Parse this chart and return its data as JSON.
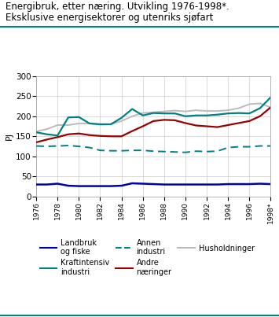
{
  "title_line1": "Energibruk, etter næring. Utvikling 1976-1998*.",
  "title_line2": "Eksklusive energisektorer og utenriks sjøfart",
  "ylabel": "PJ",
  "years": [
    1976,
    1977,
    1978,
    1979,
    1980,
    1981,
    1982,
    1983,
    1984,
    1985,
    1986,
    1987,
    1988,
    1989,
    1990,
    1991,
    1992,
    1993,
    1994,
    1995,
    1996,
    1997,
    1998
  ],
  "xtick_labels": [
    "1976",
    "1978",
    "1980",
    "1982",
    "1984",
    "1986",
    "1988",
    "1990",
    "1992",
    "1994",
    "1996",
    "1998*"
  ],
  "xtick_positions": [
    1976,
    1978,
    1980,
    1982,
    1984,
    1986,
    1988,
    1990,
    1992,
    1994,
    1996,
    1998
  ],
  "ylim": [
    0,
    300
  ],
  "yticks": [
    0,
    50,
    100,
    150,
    200,
    250,
    300
  ],
  "landbruk": [
    30,
    30,
    32,
    27,
    26,
    26,
    26,
    26,
    27,
    33,
    32,
    31,
    30,
    30,
    30,
    30,
    30,
    30,
    31,
    31,
    31,
    32,
    31
  ],
  "andre_naeringer": [
    135,
    142,
    148,
    155,
    157,
    153,
    151,
    150,
    150,
    163,
    175,
    188,
    191,
    190,
    183,
    177,
    175,
    173,
    178,
    183,
    188,
    200,
    222
  ],
  "kraftintensiv": [
    160,
    155,
    152,
    197,
    198,
    182,
    180,
    180,
    196,
    218,
    202,
    208,
    207,
    207,
    200,
    202,
    202,
    204,
    207,
    208,
    207,
    220,
    247
  ],
  "husholdninger": [
    162,
    168,
    178,
    178,
    182,
    182,
    179,
    180,
    188,
    200,
    208,
    210,
    212,
    214,
    212,
    215,
    213,
    213,
    215,
    220,
    230,
    232,
    222
  ],
  "annen_industri": [
    126,
    125,
    126,
    127,
    125,
    122,
    115,
    114,
    114,
    115,
    115,
    113,
    112,
    111,
    110,
    113,
    112,
    113,
    122,
    124,
    124,
    126,
    126
  ],
  "color_landbruk": "#0000AA",
  "color_andre": "#990000",
  "color_kraftintensiv": "#008080",
  "color_husholdninger": "#BBBBBB",
  "color_annen_industri": "#008080",
  "teal_color": "#008080",
  "legend": [
    {
      "label": "Landbruk\nog fiske",
      "color": "#0000AA",
      "linestyle": "solid",
      "row": 0,
      "col": 0
    },
    {
      "label": "Kraftintensiv\nindustri",
      "color": "#008080",
      "linestyle": "solid",
      "row": 0,
      "col": 1
    },
    {
      "label": "Annen\nindustri",
      "color": "#008080",
      "linestyle": "dashed",
      "row": 0,
      "col": 2
    },
    {
      "label": "Andre\nnæringer",
      "color": "#990000",
      "linestyle": "solid",
      "row": 1,
      "col": 0
    },
    {
      "label": "Husholdninger",
      "color": "#BBBBBB",
      "linestyle": "solid",
      "row": 1,
      "col": 1
    }
  ]
}
